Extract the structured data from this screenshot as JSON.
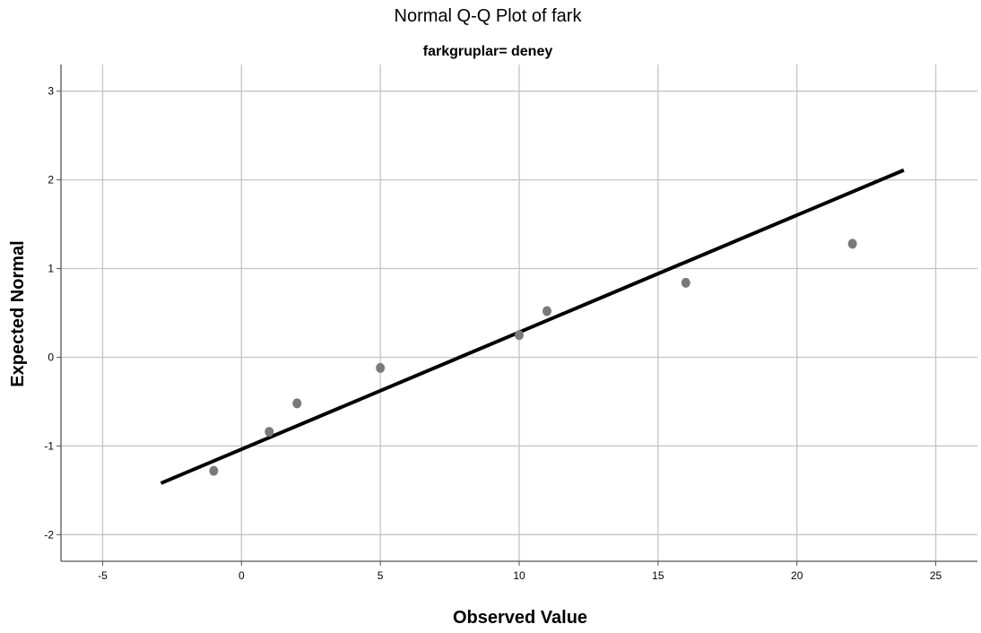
{
  "chart_data": {
    "type": "scatter",
    "title": "Normal Q-Q Plot of fark",
    "subtitle": "farkgruplar= deney",
    "xlabel": "Observed Value",
    "ylabel": "Expected Normal",
    "xlim": [
      -6.5,
      26.5
    ],
    "ylim": [
      -2.3,
      3.3
    ],
    "x_ticks": [
      -5,
      0,
      5,
      10,
      15,
      20,
      25
    ],
    "y_ticks": [
      -2,
      -1,
      0,
      1,
      2,
      3
    ],
    "x_tick_labels": [
      "-5",
      "0",
      "5",
      "10",
      "15",
      "20",
      "25"
    ],
    "y_tick_labels": [
      "-2",
      "-1",
      "0",
      "1",
      "2",
      "3"
    ],
    "grid": true,
    "points": [
      {
        "x": -1,
        "y": -1.28
      },
      {
        "x": 1,
        "y": -0.84
      },
      {
        "x": 2,
        "y": -0.52
      },
      {
        "x": 5,
        "y": -0.12
      },
      {
        "x": 10,
        "y": 0.25
      },
      {
        "x": 11,
        "y": 0.52
      },
      {
        "x": 16,
        "y": 0.84
      },
      {
        "x": 22,
        "y": 1.28
      }
    ],
    "reference_line": {
      "x": [
        -2.9,
        23.85
      ],
      "y": [
        -1.42,
        2.11
      ]
    },
    "colors": {
      "points": "#7a7a7a",
      "line": "#000000",
      "grid": "#c4c4c4",
      "axis": "#555555"
    }
  }
}
